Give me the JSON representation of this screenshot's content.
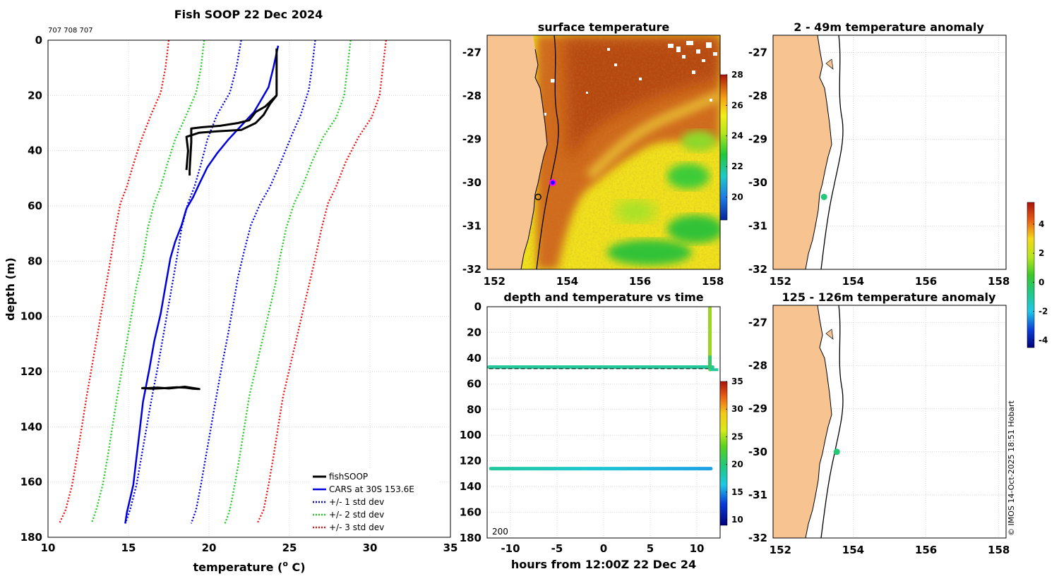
{
  "main_title": "Fish SOOP 22 Dec 2024",
  "drop_ids": "707 708 707",
  "copyright": "© IMOS 14-Oct-2025 18:51 Hobart",
  "colors": {
    "fishsoop": "#000000",
    "cars": "#0000dd",
    "std1": "#0000dd",
    "std2": "#22cc22",
    "std3": "#ee1111",
    "land": "#f7c491"
  },
  "chart_data": [
    {
      "type": "line",
      "id": "profile",
      "title": "Fish SOOP 22 Dec 2024",
      "xlabel": "temperature (",
      "xlabel_sup": "o",
      "xlabel_tail": " C)",
      "ylabel": "depth (m)",
      "xlim": [
        10,
        35
      ],
      "ylim": [
        180,
        0
      ],
      "xticks": [
        "10",
        "15",
        "20",
        "25",
        "30",
        "35"
      ],
      "yticks": [
        "0",
        "20",
        "40",
        "60",
        "80",
        "100",
        "120",
        "140",
        "160",
        "180"
      ],
      "legend": {
        "position": "bottom-right",
        "entries": [
          "fishSOOP",
          "CARS at 30S 153.6E",
          "+/- 1 std dev",
          "+/- 2 std dev",
          "+/- 3 std dev"
        ]
      },
      "series": [
        {
          "name": "CARS at 30S 153.6E",
          "style": "solid",
          "points": [
            [
              24.3,
              2
            ],
            [
              24.0,
              10
            ],
            [
              23.7,
              17
            ],
            [
              23.2,
              22
            ],
            [
              22.8,
              26
            ],
            [
              22.0,
              31
            ],
            [
              21.2,
              36
            ],
            [
              20.5,
              41
            ],
            [
              19.9,
              46
            ],
            [
              19.4,
              52
            ],
            [
              19.0,
              57
            ],
            [
              18.6,
              61
            ],
            [
              18.3,
              67
            ],
            [
              17.9,
              73
            ],
            [
              17.6,
              79
            ],
            [
              17.3,
              89
            ],
            [
              17.0,
              99
            ],
            [
              16.6,
              109
            ],
            [
              16.3,
              119
            ],
            [
              15.9,
              131
            ],
            [
              15.7,
              141
            ],
            [
              15.5,
              151
            ],
            [
              15.3,
              161
            ],
            [
              15.1,
              166
            ],
            [
              14.9,
              171
            ],
            [
              14.8,
              175
            ]
          ]
        },
        {
          "name": "+/- 1 std dev (upper)",
          "style": "dot",
          "points": [
            [
              26.6,
              0
            ],
            [
              26.4,
              10
            ],
            [
              26.2,
              18
            ],
            [
              25.7,
              27
            ],
            [
              25.1,
              35
            ],
            [
              24.4,
              45
            ],
            [
              23.8,
              53
            ],
            [
              23.2,
              59
            ],
            [
              22.6,
              67
            ],
            [
              22.2,
              76
            ],
            [
              21.8,
              86
            ],
            [
              21.5,
              96
            ],
            [
              21.2,
              106
            ],
            [
              20.8,
              118
            ],
            [
              20.4,
              131
            ],
            [
              20.1,
              141
            ],
            [
              19.8,
              151
            ],
            [
              19.5,
              161
            ],
            [
              19.2,
              170
            ],
            [
              18.9,
              175
            ]
          ]
        },
        {
          "name": "+/- 1 std dev (lower)",
          "style": "dot",
          "points": [
            [
              22.0,
              0
            ],
            [
              21.7,
              10
            ],
            [
              21.3,
              19
            ],
            [
              20.5,
              27
            ],
            [
              19.9,
              36
            ],
            [
              19.5,
              45
            ],
            [
              19.1,
              53
            ],
            [
              18.7,
              59
            ],
            [
              18.3,
              68
            ],
            [
              18.0,
              79
            ],
            [
              17.7,
              89
            ],
            [
              17.4,
              99
            ],
            [
              17.1,
              109
            ],
            [
              16.8,
              119
            ],
            [
              16.4,
              131
            ],
            [
              16.1,
              141
            ],
            [
              15.8,
              151
            ],
            [
              15.5,
              161
            ],
            [
              15.1,
              170
            ],
            [
              14.8,
              175
            ]
          ]
        },
        {
          "name": "+/- 2 std dev (upper)",
          "style": "dot",
          "points": [
            [
              28.8,
              0
            ],
            [
              28.6,
              10
            ],
            [
              28.4,
              20
            ],
            [
              27.9,
              28
            ],
            [
              27.1,
              35
            ],
            [
              26.4,
              44
            ],
            [
              25.8,
              53
            ],
            [
              25.3,
              59
            ],
            [
              24.8,
              68
            ],
            [
              24.4,
              79
            ],
            [
              24.1,
              89
            ],
            [
              23.7,
              99
            ],
            [
              23.3,
              109
            ],
            [
              22.9,
              119
            ],
            [
              22.5,
              129
            ],
            [
              22.2,
              140
            ],
            [
              21.9,
              151
            ],
            [
              21.6,
              161
            ],
            [
              21.3,
              170
            ],
            [
              21.0,
              175
            ]
          ]
        },
        {
          "name": "+/- 2 std dev (lower)",
          "style": "dot",
          "points": [
            [
              19.7,
              0
            ],
            [
              19.5,
              10
            ],
            [
              19.2,
              19
            ],
            [
              18.6,
              27
            ],
            [
              17.9,
              36
            ],
            [
              17.4,
              45
            ],
            [
              17.0,
              53
            ],
            [
              16.6,
              59
            ],
            [
              16.2,
              68
            ],
            [
              15.9,
              79
            ],
            [
              15.5,
              89
            ],
            [
              15.2,
              99
            ],
            [
              14.9,
              109
            ],
            [
              14.6,
              119
            ],
            [
              14.3,
              129
            ],
            [
              14.0,
              140
            ],
            [
              13.7,
              151
            ],
            [
              13.4,
              161
            ],
            [
              13.0,
              170
            ],
            [
              12.7,
              175
            ]
          ]
        },
        {
          "name": "+/- 3 std dev (upper)",
          "style": "dot",
          "points": [
            [
              31.0,
              0
            ],
            [
              30.8,
              10
            ],
            [
              30.6,
              20
            ],
            [
              30.1,
              28
            ],
            [
              29.3,
              35
            ],
            [
              28.5,
              44
            ],
            [
              27.9,
              53
            ],
            [
              27.4,
              59
            ],
            [
              27.0,
              68
            ],
            [
              26.6,
              79
            ],
            [
              26.2,
              89
            ],
            [
              25.8,
              99
            ],
            [
              25.4,
              109
            ],
            [
              25.0,
              119
            ],
            [
              24.6,
              129
            ],
            [
              24.3,
              140
            ],
            [
              24.0,
              151
            ],
            [
              23.7,
              161
            ],
            [
              23.4,
              170
            ],
            [
              23.0,
              175
            ]
          ]
        },
        {
          "name": "+/- 3 std dev (lower)",
          "style": "dot",
          "points": [
            [
              17.5,
              0
            ],
            [
              17.3,
              10
            ],
            [
              17.0,
              19
            ],
            [
              16.4,
              27
            ],
            [
              15.8,
              36
            ],
            [
              15.3,
              45
            ],
            [
              14.9,
              53
            ],
            [
              14.5,
              59
            ],
            [
              14.2,
              68
            ],
            [
              13.9,
              79
            ],
            [
              13.6,
              89
            ],
            [
              13.3,
              99
            ],
            [
              13.0,
              109
            ],
            [
              12.7,
              119
            ],
            [
              12.4,
              129
            ],
            [
              12.1,
              140
            ],
            [
              11.8,
              151
            ],
            [
              11.5,
              161
            ],
            [
              11.1,
              170
            ],
            [
              10.7,
              175
            ]
          ]
        },
        {
          "name": "fishSOOP",
          "style": "solid-thick",
          "points": [
            [
              24.2,
              3
            ],
            [
              24.2,
              20
            ],
            [
              23.5,
              24
            ],
            [
              22.9,
              26
            ],
            [
              22.5,
              29
            ],
            [
              21.8,
              30
            ],
            [
              20.7,
              31
            ],
            [
              19.6,
              31.5
            ],
            [
              18.9,
              32
            ],
            [
              18.9,
              37
            ],
            [
              18.8,
              47
            ],
            [
              18.8,
              49
            ]
          ]
        },
        {
          "name": "fishSOOP up",
          "style": "solid-thick",
          "points": [
            [
              18.6,
              47
            ],
            [
              18.7,
              40
            ],
            [
              18.6,
              35
            ],
            [
              19.4,
              33.5
            ],
            [
              20.5,
              33
            ],
            [
              22.0,
              32.5
            ],
            [
              22.9,
              30
            ],
            [
              23.4,
              27
            ],
            [
              23.8,
              23
            ],
            [
              24.2,
              20
            ]
          ]
        },
        {
          "name": "fishSOOP bottom",
          "style": "solid-thick",
          "points": [
            [
              15.8,
              126
            ],
            [
              16.5,
              126.2
            ],
            [
              17.2,
              126
            ],
            [
              18.0,
              125.7
            ],
            [
              18.5,
              125.8
            ],
            [
              19.0,
              126.2
            ],
            [
              19.4,
              126.3
            ],
            [
              18.5,
              125.5
            ],
            [
              17.5,
              126.1
            ],
            [
              16.8,
              125.8
            ],
            [
              16.2,
              126.0
            ],
            [
              15.9,
              125.9
            ]
          ]
        }
      ]
    },
    {
      "type": "heatmap",
      "id": "sst_map",
      "title": "surface temperature",
      "xlim": [
        151.8,
        158.2
      ],
      "ylim": [
        -32,
        -26.6
      ],
      "xticks": [
        "152",
        "154",
        "156",
        "158"
      ],
      "yticks": [
        "-27",
        "-28",
        "-29",
        "-30",
        "-31",
        "-32"
      ],
      "colorbar": {
        "range": [
          18.5,
          28
        ],
        "ticks": [
          "20",
          "22",
          "24",
          "26",
          "28"
        ]
      },
      "markers": [
        {
          "label": "deployment",
          "lon": 153.6,
          "lat": -30.0,
          "color": "#ff00ff"
        },
        {
          "label": "port",
          "lon": 153.2,
          "lat": -30.33,
          "color": "#000000"
        }
      ]
    },
    {
      "type": "scatter",
      "id": "depth_time",
      "title": "depth and temperature vs time",
      "xlabel": "hours from 12:00Z 22 Dec 24",
      "xlim": [
        -12.5,
        12.5
      ],
      "ylim": [
        180,
        0
      ],
      "xticks": [
        "-10",
        "-5",
        "0",
        "5",
        "10"
      ],
      "yticks": [
        "0",
        "20",
        "40",
        "60",
        "80",
        "100",
        "120",
        "140",
        "160",
        "180"
      ],
      "annotation": "200",
      "colorbar": {
        "range": [
          9,
          35
        ],
        "ticks": [
          "10",
          "15",
          "20",
          "25",
          "30",
          "35"
        ]
      },
      "series": [
        {
          "name": "shallow",
          "depth": 47,
          "x_range": [
            -12.3,
            11.7
          ],
          "temp_range": [
            20,
            21
          ]
        },
        {
          "name": "deep",
          "depth": 126,
          "x_range": [
            -12.3,
            11.7
          ],
          "temp_range": [
            18.5,
            21
          ]
        },
        {
          "name": "profile",
          "x": 11.4,
          "depth_range": [
            1,
            49
          ],
          "temp_range": [
            24,
            25
          ]
        }
      ]
    },
    {
      "type": "scatter",
      "id": "anom_shallow",
      "title": "2 - 49m temperature anomaly",
      "xlim": [
        151.8,
        158.2
      ],
      "ylim": [
        -32,
        -26.6
      ],
      "xticks": [
        "152",
        "154",
        "156",
        "158"
      ],
      "yticks": [
        "-27",
        "-28",
        "-29",
        "-30",
        "-31",
        "-32"
      ],
      "points": [
        {
          "lon": 153.2,
          "lat": -30.33,
          "anomaly": 0.7
        }
      ]
    },
    {
      "type": "scatter",
      "id": "anom_deep",
      "title": "125 - 126m temperature anomaly",
      "xlim": [
        151.8,
        158.2
      ],
      "ylim": [
        -32,
        -26.6
      ],
      "xticks": [
        "152",
        "154",
        "156",
        "158"
      ],
      "yticks": [
        "-27",
        "-28",
        "-29",
        "-30",
        "-31",
        "-32"
      ],
      "points": [
        {
          "lon": 153.55,
          "lat": -30.0,
          "anomaly": 0.9
        }
      ]
    }
  ],
  "anomaly_colorbar": {
    "range": [
      -4.5,
      5.5
    ],
    "ticks": [
      "-4",
      "-2",
      "0",
      "2",
      "4"
    ]
  }
}
